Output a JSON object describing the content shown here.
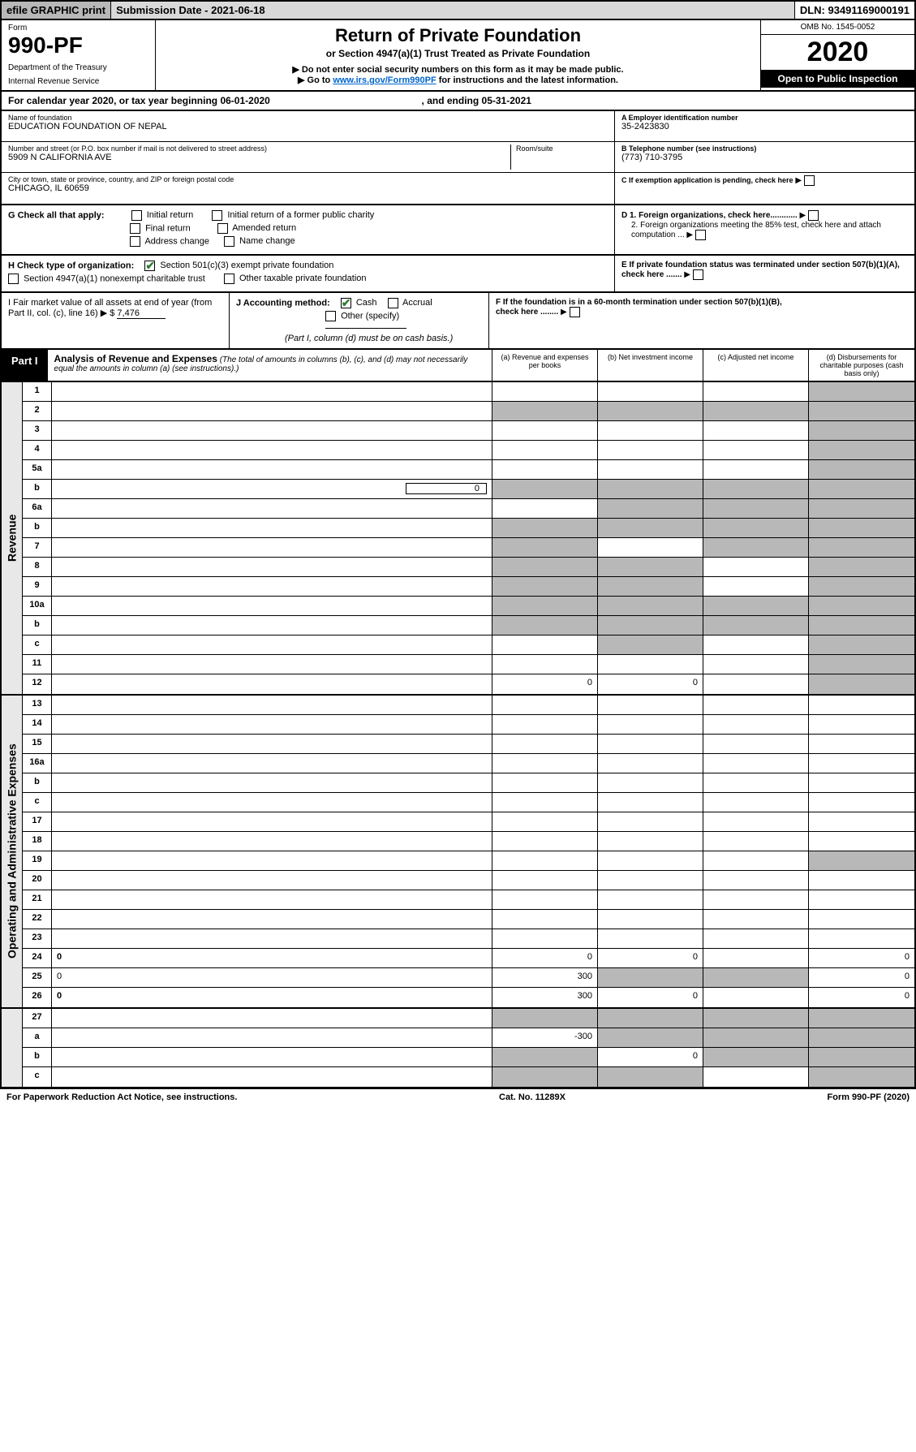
{
  "top": {
    "efile": "efile GRAPHIC print",
    "subdate": "Submission Date - 2021-06-18",
    "dln": "DLN: 93491169000191"
  },
  "header": {
    "form_label": "Form",
    "form_number": "990-PF",
    "dept1": "Department of the Treasury",
    "dept2": "Internal Revenue Service",
    "title": "Return of Private Foundation",
    "subtitle": "or Section 4947(a)(1) Trust Treated as Private Foundation",
    "note1": "▶ Do not enter social security numbers on this form as it may be made public.",
    "note2_pre": "▶ Go to ",
    "note2_link": "www.irs.gov/Form990PF",
    "note2_post": " for instructions and the latest information.",
    "omb": "OMB No. 1545-0052",
    "year": "2020",
    "open": "Open to Public Inspection"
  },
  "cal": {
    "text_pre": "For calendar year 2020, or tax year beginning ",
    "begin": "06-01-2020",
    "text_mid": ", and ending ",
    "end": "05-31-2021"
  },
  "info": {
    "name_lbl": "Name of foundation",
    "name": "EDUCATION FOUNDATION OF NEPAL",
    "addr_lbl": "Number and street (or P.O. box number if mail is not delivered to street address)",
    "addr": "5909 N CALIFORNIA AVE",
    "room_lbl": "Room/suite",
    "city_lbl": "City or town, state or province, country, and ZIP or foreign postal code",
    "city": "CHICAGO, IL  60659",
    "ein_lbl": "A Employer identification number",
    "ein": "35-2423830",
    "tel_lbl": "B Telephone number (see instructions)",
    "tel": "(773) 710-3795",
    "c_lbl": "C If exemption application is pending, check here",
    "d1": "D 1. Foreign organizations, check here............",
    "d2": "2. Foreign organizations meeting the 85% test, check here and attach computation ...",
    "e_lbl": "E  If private foundation status was terminated under section 507(b)(1)(A), check here .......",
    "f_lbl": "F  If the foundation is in a 60-month termination under section 507(b)(1)(B), check here ........"
  },
  "g": {
    "label": "G Check all that apply:",
    "initial": "Initial return",
    "initial_former": "Initial return of a former public charity",
    "final": "Final return",
    "amended": "Amended return",
    "addr_change": "Address change",
    "name_change": "Name change"
  },
  "h": {
    "label": "H Check type of organization:",
    "s501": "Section 501(c)(3) exempt private foundation",
    "s4947": "Section 4947(a)(1) nonexempt charitable trust",
    "other_tax": "Other taxable private foundation"
  },
  "i": {
    "label": "I Fair market value of all assets at end of year (from Part II, col. (c), line 16) ▶ $",
    "val": "7,476"
  },
  "j": {
    "label": "J Accounting method:",
    "cash": "Cash",
    "accrual": "Accrual",
    "other": "Other (specify)",
    "note": "(Part I, column (d) must be on cash basis.)"
  },
  "part1": {
    "label": "Part I",
    "title": "Analysis of Revenue and Expenses",
    "note": "(The total of amounts in columns (b), (c), and (d) may not necessarily equal the amounts in column (a) (see instructions).)",
    "col_a": "(a)  Revenue and expenses per books",
    "col_b": "(b)  Net investment income",
    "col_c": "(c)  Adjusted net income",
    "col_d": "(d)  Disbursements for charitable purposes (cash basis only)"
  },
  "side_rev": "Revenue",
  "side_exp": "Operating and Administrative Expenses",
  "rows": [
    {
      "n": "1",
      "d": "",
      "a": "",
      "b": "",
      "c": "",
      "shade_d": true
    },
    {
      "n": "2",
      "d": "",
      "a": "",
      "b": "",
      "c": "",
      "shade_all": true,
      "bold_not": true
    },
    {
      "n": "3",
      "d": "",
      "a": "",
      "b": "",
      "c": "",
      "shade_d": true
    },
    {
      "n": "4",
      "d": "",
      "a": "",
      "b": "",
      "c": "",
      "shade_d": true
    },
    {
      "n": "5a",
      "d": "",
      "a": "",
      "b": "",
      "c": "",
      "shade_d": true
    },
    {
      "n": "b",
      "d": "",
      "a": "",
      "b": "",
      "c": "",
      "shade_all": true,
      "inline_val": "0"
    },
    {
      "n": "6a",
      "d": "",
      "a": "",
      "b": "",
      "c": "",
      "shade_bcd": true
    },
    {
      "n": "b",
      "d": "",
      "a": "",
      "b": "",
      "c": "",
      "shade_all": true
    },
    {
      "n": "7",
      "d": "",
      "a": "",
      "b": "",
      "c": "",
      "shade_a": true,
      "shade_cd": true
    },
    {
      "n": "8",
      "d": "",
      "a": "",
      "b": "",
      "c": "",
      "shade_ab": true,
      "shade_d": true
    },
    {
      "n": "9",
      "d": "",
      "a": "",
      "b": "",
      "c": "",
      "shade_ab": true,
      "shade_d": true
    },
    {
      "n": "10a",
      "d": "",
      "a": "",
      "b": "",
      "c": "",
      "shade_all": true
    },
    {
      "n": "b",
      "d": "",
      "a": "",
      "b": "",
      "c": "",
      "shade_all": true
    },
    {
      "n": "c",
      "d": "",
      "a": "",
      "b": "",
      "c": "",
      "shade_b": true,
      "shade_d": true
    },
    {
      "n": "11",
      "d": "",
      "a": "",
      "b": "",
      "c": "",
      "shade_d": true
    },
    {
      "n": "12",
      "d": "",
      "a": "0",
      "b": "0",
      "c": "",
      "shade_d": true,
      "bold": true
    }
  ],
  "exp_rows": [
    {
      "n": "13",
      "d": "",
      "a": "",
      "b": "",
      "c": ""
    },
    {
      "n": "14",
      "d": "",
      "a": "",
      "b": "",
      "c": ""
    },
    {
      "n": "15",
      "d": "",
      "a": "",
      "b": "",
      "c": ""
    },
    {
      "n": "16a",
      "d": "",
      "a": "",
      "b": "",
      "c": ""
    },
    {
      "n": "b",
      "d": "",
      "a": "",
      "b": "",
      "c": ""
    },
    {
      "n": "c",
      "d": "",
      "a": "",
      "b": "",
      "c": ""
    },
    {
      "n": "17",
      "d": "",
      "a": "",
      "b": "",
      "c": ""
    },
    {
      "n": "18",
      "d": "",
      "a": "",
      "b": "",
      "c": ""
    },
    {
      "n": "19",
      "d": "",
      "a": "",
      "b": "",
      "c": "",
      "shade_d": true
    },
    {
      "n": "20",
      "d": "",
      "a": "",
      "b": "",
      "c": ""
    },
    {
      "n": "21",
      "d": "",
      "a": "",
      "b": "",
      "c": ""
    },
    {
      "n": "22",
      "d": "",
      "a": "",
      "b": "",
      "c": ""
    },
    {
      "n": "23",
      "d": "",
      "a": "",
      "b": "",
      "c": ""
    },
    {
      "n": "24",
      "d": "0",
      "a": "0",
      "b": "0",
      "c": "",
      "bold": true
    },
    {
      "n": "25",
      "d": "0",
      "a": "300",
      "b": "",
      "c": "",
      "shade_bc": true
    },
    {
      "n": "26",
      "d": "0",
      "a": "300",
      "b": "0",
      "c": "",
      "bold": true
    }
  ],
  "bottom_rows": [
    {
      "n": "27",
      "d": "",
      "a": "",
      "b": "",
      "c": "",
      "shade_all": true
    },
    {
      "n": "a",
      "d": "",
      "a": "-300",
      "b": "",
      "c": "",
      "bold": true,
      "shade_bcd": true
    },
    {
      "n": "b",
      "d": "",
      "a": "",
      "b": "0",
      "c": "",
      "bold": true,
      "shade_a": true,
      "shade_cd": true
    },
    {
      "n": "c",
      "d": "",
      "a": "",
      "b": "",
      "c": "",
      "bold": true,
      "shade_ab": true,
      "shade_d": true
    }
  ],
  "footer": {
    "left": "For Paperwork Reduction Act Notice, see instructions.",
    "mid": "Cat. No. 11289X",
    "right": "Form 990-PF (2020)"
  }
}
